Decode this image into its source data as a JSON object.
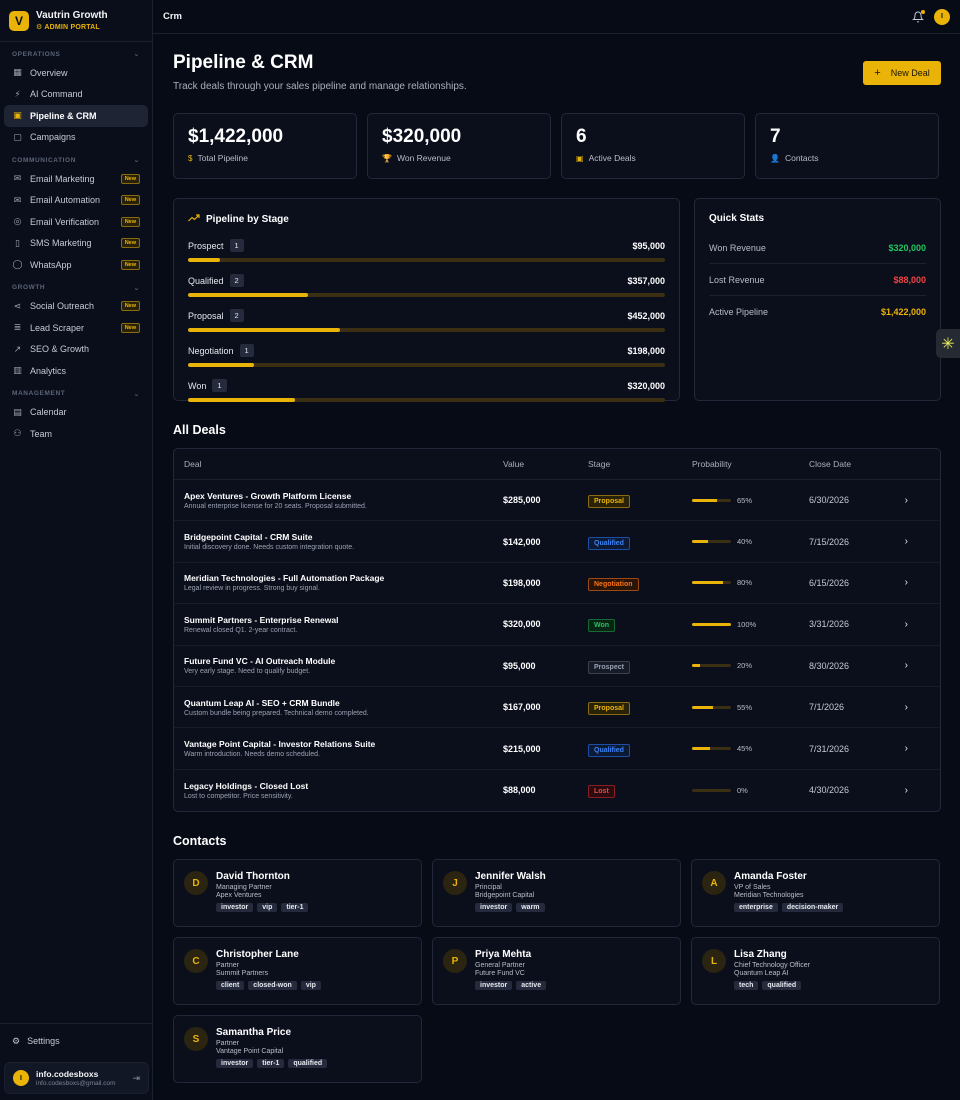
{
  "brand": {
    "initial": "V",
    "name": "Vautrin Growth",
    "subtitle": "⚙ ADMIN PORTAL"
  },
  "sidebar": {
    "sections": [
      {
        "title": "OPERATIONS",
        "items": [
          {
            "label": "Overview",
            "icon": "grid-icon"
          },
          {
            "label": "AI Command",
            "icon": "bolt-icon"
          },
          {
            "label": "Pipeline & CRM",
            "icon": "briefcase-icon",
            "active": true
          },
          {
            "label": "Campaigns",
            "icon": "chat-icon"
          }
        ]
      },
      {
        "title": "COMMUNICATION",
        "items": [
          {
            "label": "Email Marketing",
            "icon": "mail-icon",
            "badge": "New"
          },
          {
            "label": "Email Automation",
            "icon": "mail-open-icon",
            "badge": "New"
          },
          {
            "label": "Email Verification",
            "icon": "check-circle-icon",
            "badge": "New"
          },
          {
            "label": "SMS Marketing",
            "icon": "phone-icon",
            "badge": "New"
          },
          {
            "label": "WhatsApp",
            "icon": "message-circle-icon",
            "badge": "New"
          }
        ]
      },
      {
        "title": "GROWTH",
        "items": [
          {
            "label": "Social Outreach",
            "icon": "share-icon",
            "badge": "New"
          },
          {
            "label": "Lead Scraper",
            "icon": "database-icon",
            "badge": "New"
          },
          {
            "label": "SEO & Growth",
            "icon": "trending-icon"
          },
          {
            "label": "Analytics",
            "icon": "bar-chart-icon"
          }
        ]
      },
      {
        "title": "MANAGEMENT",
        "items": [
          {
            "label": "Calendar",
            "icon": "calendar-icon"
          },
          {
            "label": "Team",
            "icon": "users-icon"
          }
        ]
      }
    ],
    "settings_label": "Settings",
    "user": {
      "initial": "I",
      "name": "info.codesboxs",
      "email": "info.codesboxs@gmail.com"
    }
  },
  "topbar": {
    "title": "Crm",
    "avatar_initial": "I"
  },
  "page": {
    "title": "Pipeline & CRM",
    "subtitle": "Track deals through your sales pipeline and manage relationships.",
    "new_deal_label": "New Deal"
  },
  "stats": [
    {
      "value": "$1,422,000",
      "label": "Total Pipeline",
      "icon": "$"
    },
    {
      "value": "$320,000",
      "label": "Won Revenue",
      "icon": "🏆"
    },
    {
      "value": "6",
      "label": "Active Deals",
      "icon": "▣"
    },
    {
      "value": "7",
      "label": "Contacts",
      "icon": "👤"
    }
  ],
  "pipeline": {
    "title": "Pipeline by Stage",
    "stages": [
      {
        "name": "Prospect",
        "count": "1",
        "amount": "$95,000",
        "fill": 0.067
      },
      {
        "name": "Qualified",
        "count": "2",
        "amount": "$357,000",
        "fill": 0.251
      },
      {
        "name": "Proposal",
        "count": "2",
        "amount": "$452,000",
        "fill": 0.318
      },
      {
        "name": "Negotiation",
        "count": "1",
        "amount": "$198,000",
        "fill": 0.139
      },
      {
        "name": "Won",
        "count": "1",
        "amount": "$320,000",
        "fill": 0.225
      }
    ]
  },
  "quick_stats": {
    "title": "Quick Stats",
    "rows": [
      {
        "label": "Won Revenue",
        "value": "$320,000",
        "color": "#22c55e"
      },
      {
        "label": "Lost Revenue",
        "value": "$88,000",
        "color": "#ef4444"
      },
      {
        "label": "Active Pipeline",
        "value": "$1,422,000",
        "color": "#eab308"
      }
    ]
  },
  "deals": {
    "title": "All Deals",
    "headers": {
      "deal": "Deal",
      "value": "Value",
      "stage": "Stage",
      "probability": "Probability",
      "close": "Close Date"
    },
    "rows": [
      {
        "name": "Apex Ventures - Growth Platform License",
        "desc": "Annual enterprise license for 20 seats. Proposal submitted.",
        "value": "$285,000",
        "stage": "Proposal",
        "prob": 65,
        "prob_label": "65%",
        "date": "6/30/2026"
      },
      {
        "name": "Bridgepoint Capital - CRM Suite",
        "desc": "Initial discovery done. Needs custom integration quote.",
        "value": "$142,000",
        "stage": "Qualified",
        "prob": 40,
        "prob_label": "40%",
        "date": "7/15/2026"
      },
      {
        "name": "Meridian Technologies - Full Automation Package",
        "desc": "Legal review in progress. Strong buy signal.",
        "value": "$198,000",
        "stage": "Negotiation",
        "prob": 80,
        "prob_label": "80%",
        "date": "6/15/2026"
      },
      {
        "name": "Summit Partners - Enterprise Renewal",
        "desc": "Renewal closed Q1. 2-year contract.",
        "value": "$320,000",
        "stage": "Won",
        "prob": 100,
        "prob_label": "100%",
        "date": "3/31/2026"
      },
      {
        "name": "Future Fund VC - AI Outreach Module",
        "desc": "Very early stage. Need to qualify budget.",
        "value": "$95,000",
        "stage": "Prospect",
        "prob": 20,
        "prob_label": "20%",
        "date": "8/30/2026"
      },
      {
        "name": "Quantum Leap AI - SEO + CRM Bundle",
        "desc": "Custom bundle being prepared. Technical demo completed.",
        "value": "$167,000",
        "stage": "Proposal",
        "prob": 55,
        "prob_label": "55%",
        "date": "7/1/2026"
      },
      {
        "name": "Vantage Point Capital - Investor Relations Suite",
        "desc": "Warm introduction. Needs demo scheduled.",
        "value": "$215,000",
        "stage": "Qualified",
        "prob": 45,
        "prob_label": "45%",
        "date": "7/31/2026"
      },
      {
        "name": "Legacy Holdings - Closed Lost",
        "desc": "Lost to competitor. Price sensitivity.",
        "value": "$88,000",
        "stage": "Lost",
        "prob": 0,
        "prob_label": "0%",
        "date": "4/30/2026"
      }
    ],
    "stage_colors": {
      "Proposal": {
        "fg": "#eab308",
        "bg": "#2a2208",
        "border": "#8a6b10"
      },
      "Qualified": {
        "fg": "#3b82f6",
        "bg": "#0d1a33",
        "border": "#1e4ea8"
      },
      "Negotiation": {
        "fg": "#f97316",
        "bg": "#2a1408",
        "border": "#9a4a12"
      },
      "Won": {
        "fg": "#22c55e",
        "bg": "#0a2414",
        "border": "#166a36"
      },
      "Prospect": {
        "fg": "#9aa1b2",
        "bg": "#161b28",
        "border": "#3a4052"
      },
      "Lost": {
        "fg": "#ef4444",
        "bg": "#2a0c10",
        "border": "#8a1e26"
      }
    }
  },
  "contacts": {
    "title": "Contacts",
    "items": [
      {
        "initial": "D",
        "name": "David Thornton",
        "role": "Managing Partner",
        "company": "Apex Ventures",
        "tags": [
          "investor",
          "vip",
          "tier-1"
        ]
      },
      {
        "initial": "J",
        "name": "Jennifer Walsh",
        "role": "Principal",
        "company": "Bridgepoint Capital",
        "tags": [
          "investor",
          "warm"
        ]
      },
      {
        "initial": "A",
        "name": "Amanda Foster",
        "role": "VP of Sales",
        "company": "Meridian Technologies",
        "tags": [
          "enterprise",
          "decision-maker"
        ]
      },
      {
        "initial": "C",
        "name": "Christopher Lane",
        "role": "Partner",
        "company": "Summit Partners",
        "tags": [
          "client",
          "closed-won",
          "vip"
        ]
      },
      {
        "initial": "P",
        "name": "Priya Mehta",
        "role": "General Partner",
        "company": "Future Fund VC",
        "tags": [
          "investor",
          "active"
        ]
      },
      {
        "initial": "L",
        "name": "Lisa Zhang",
        "role": "Chief Technology Officer",
        "company": "Quantum Leap AI",
        "tags": [
          "tech",
          "qualified"
        ]
      },
      {
        "initial": "S",
        "name": "Samantha Price",
        "role": "Partner",
        "company": "Vantage Point Capital",
        "tags": [
          "investor",
          "tier-1",
          "qualified"
        ]
      }
    ]
  },
  "float_button": {
    "icon": "sparkle-icon",
    "glyph": "✳"
  }
}
